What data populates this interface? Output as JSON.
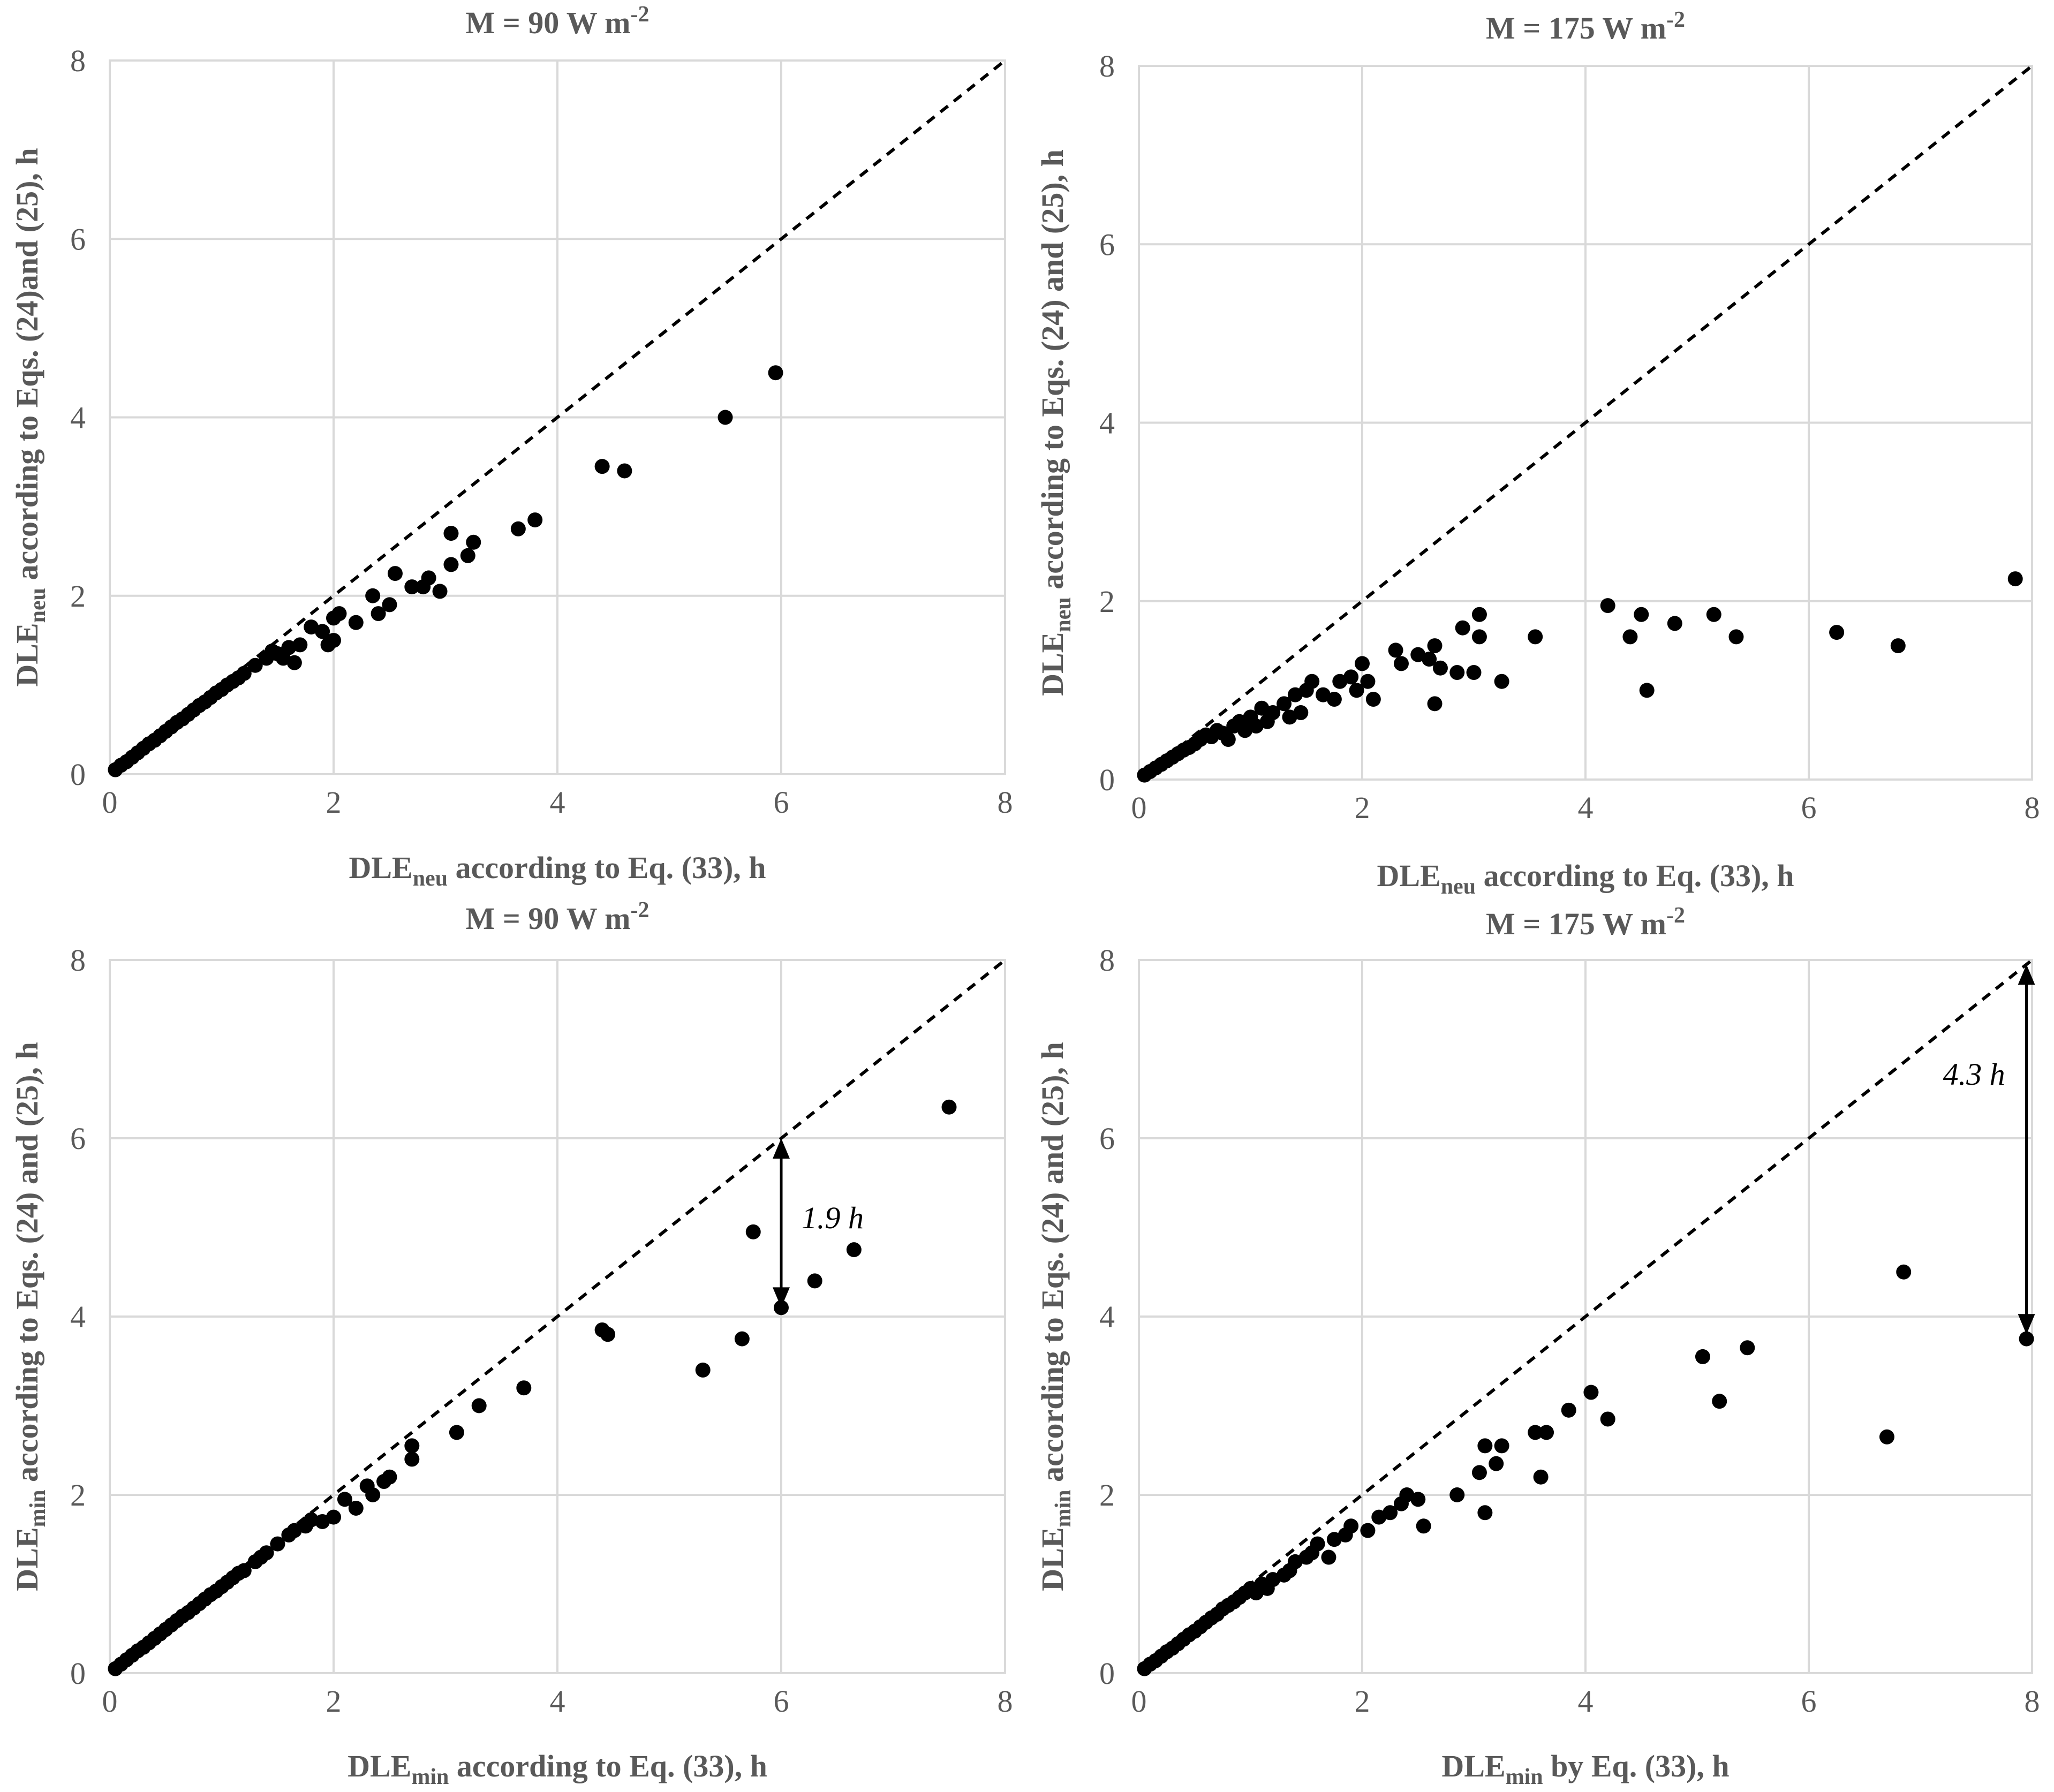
{
  "chart_data": [
    {
      "type": "scatter",
      "title": "M = 90 W m",
      "title_sup": "-2",
      "xlabel": {
        "main": "DLE",
        "sub": "neu",
        "rest": " according to Eq. (33), h"
      },
      "ylabel": {
        "main": "DLE",
        "sub": "neu",
        "rest": " according to  Eqs. (24)and (25), h"
      },
      "xlim": [
        0,
        8
      ],
      "ylim": [
        0,
        8
      ],
      "ticks": [
        "0",
        "2",
        "4",
        "6",
        "8"
      ],
      "reference_line": "y = x",
      "points": [
        [
          0.05,
          0.05
        ],
        [
          0.1,
          0.1
        ],
        [
          0.15,
          0.14
        ],
        [
          0.2,
          0.19
        ],
        [
          0.25,
          0.24
        ],
        [
          0.3,
          0.29
        ],
        [
          0.35,
          0.34
        ],
        [
          0.4,
          0.38
        ],
        [
          0.45,
          0.43
        ],
        [
          0.5,
          0.48
        ],
        [
          0.55,
          0.53
        ],
        [
          0.6,
          0.58
        ],
        [
          0.65,
          0.62
        ],
        [
          0.7,
          0.67
        ],
        [
          0.75,
          0.72
        ],
        [
          0.8,
          0.77
        ],
        [
          0.85,
          0.81
        ],
        [
          0.9,
          0.86
        ],
        [
          0.95,
          0.91
        ],
        [
          1.0,
          0.95
        ],
        [
          1.05,
          1.0
        ],
        [
          1.1,
          1.04
        ],
        [
          1.15,
          1.08
        ],
        [
          1.2,
          1.13
        ],
        [
          1.3,
          1.22
        ],
        [
          1.4,
          1.3
        ],
        [
          1.45,
          1.38
        ],
        [
          1.5,
          1.35
        ],
        [
          1.55,
          1.3
        ],
        [
          1.6,
          1.42
        ],
        [
          1.65,
          1.25
        ],
        [
          1.7,
          1.45
        ],
        [
          1.8,
          1.65
        ],
        [
          1.9,
          1.6
        ],
        [
          1.95,
          1.45
        ],
        [
          2.0,
          1.5
        ],
        [
          2.0,
          1.75
        ],
        [
          2.05,
          1.8
        ],
        [
          2.2,
          1.7
        ],
        [
          2.35,
          2.0
        ],
        [
          2.4,
          1.8
        ],
        [
          2.5,
          1.9
        ],
        [
          2.55,
          2.25
        ],
        [
          2.7,
          2.1
        ],
        [
          2.8,
          2.1
        ],
        [
          2.85,
          2.2
        ],
        [
          2.95,
          2.05
        ],
        [
          3.05,
          2.7
        ],
        [
          3.05,
          2.35
        ],
        [
          3.2,
          2.45
        ],
        [
          3.25,
          2.6
        ],
        [
          3.65,
          2.75
        ],
        [
          3.8,
          2.85
        ],
        [
          4.4,
          3.45
        ],
        [
          4.6,
          3.4
        ],
        [
          5.5,
          4.0
        ],
        [
          5.95,
          4.5
        ]
      ]
    },
    {
      "type": "scatter",
      "title": "M = 175 W m",
      "title_sup": "-2",
      "xlabel": {
        "main": "DLE",
        "sub": "neu",
        "rest": " according to Eq. (33), h"
      },
      "ylabel": {
        "main": "DLE",
        "sub": "neu",
        "rest": " according to Eqs. (24) and (25), h"
      },
      "xlim": [
        0,
        8
      ],
      "ylim": [
        0,
        8
      ],
      "ticks": [
        "0",
        "2",
        "4",
        "6",
        "8"
      ],
      "reference_line": "y = x",
      "points": [
        [
          0.05,
          0.05
        ],
        [
          0.1,
          0.09
        ],
        [
          0.15,
          0.13
        ],
        [
          0.2,
          0.17
        ],
        [
          0.25,
          0.21
        ],
        [
          0.3,
          0.25
        ],
        [
          0.35,
          0.29
        ],
        [
          0.4,
          0.33
        ],
        [
          0.45,
          0.36
        ],
        [
          0.5,
          0.4
        ],
        [
          0.55,
          0.45
        ],
        [
          0.6,
          0.5
        ],
        [
          0.65,
          0.48
        ],
        [
          0.7,
          0.55
        ],
        [
          0.75,
          0.52
        ],
        [
          0.8,
          0.45
        ],
        [
          0.85,
          0.6
        ],
        [
          0.9,
          0.65
        ],
        [
          0.95,
          0.55
        ],
        [
          1.0,
          0.7
        ],
        [
          1.05,
          0.6
        ],
        [
          1.1,
          0.8
        ],
        [
          1.15,
          0.65
        ],
        [
          1.2,
          0.75
        ],
        [
          1.3,
          0.85
        ],
        [
          1.35,
          0.7
        ],
        [
          1.4,
          0.95
        ],
        [
          1.45,
          0.75
        ],
        [
          1.5,
          1.0
        ],
        [
          1.55,
          1.1
        ],
        [
          1.65,
          0.95
        ],
        [
          1.75,
          0.9
        ],
        [
          1.8,
          1.1
        ],
        [
          1.9,
          1.15
        ],
        [
          1.95,
          1.0
        ],
        [
          2.0,
          1.3
        ],
        [
          2.05,
          1.1
        ],
        [
          2.1,
          0.9
        ],
        [
          2.3,
          1.45
        ],
        [
          2.35,
          1.3
        ],
        [
          2.5,
          1.4
        ],
        [
          2.6,
          1.35
        ],
        [
          2.65,
          0.85
        ],
        [
          2.65,
          1.5
        ],
        [
          2.7,
          1.25
        ],
        [
          2.85,
          1.2
        ],
        [
          2.9,
          1.7
        ],
        [
          3.0,
          1.2
        ],
        [
          3.05,
          1.85
        ],
        [
          3.05,
          1.6
        ],
        [
          3.25,
          1.1
        ],
        [
          3.55,
          1.6
        ],
        [
          4.2,
          1.95
        ],
        [
          4.4,
          1.6
        ],
        [
          4.5,
          1.85
        ],
        [
          4.55,
          1.0
        ],
        [
          4.8,
          1.75
        ],
        [
          5.15,
          1.85
        ],
        [
          5.35,
          1.6
        ],
        [
          6.25,
          1.65
        ],
        [
          6.8,
          1.5
        ],
        [
          7.85,
          2.25
        ]
      ]
    },
    {
      "type": "scatter",
      "title": "M = 90 W m",
      "title_sup": "-2",
      "xlabel": {
        "main": "DLE",
        "sub": "min",
        "rest": " according to  Eq. (33), h"
      },
      "ylabel": {
        "main": "DLE",
        "sub": "min",
        "rest": " according to  Eqs. (24) and (25), h"
      },
      "xlim": [
        0,
        8
      ],
      "ylim": [
        0,
        8
      ],
      "ticks": [
        "0",
        "2",
        "4",
        "6",
        "8"
      ],
      "reference_line": "y = x",
      "annotation": {
        "text": "1.9 h",
        "x": 6.0,
        "y_from": 4.1,
        "y_to": 6.0
      },
      "points": [
        [
          0.05,
          0.05
        ],
        [
          0.1,
          0.1
        ],
        [
          0.15,
          0.15
        ],
        [
          0.2,
          0.2
        ],
        [
          0.25,
          0.25
        ],
        [
          0.3,
          0.29
        ],
        [
          0.35,
          0.34
        ],
        [
          0.4,
          0.39
        ],
        [
          0.45,
          0.44
        ],
        [
          0.5,
          0.49
        ],
        [
          0.55,
          0.54
        ],
        [
          0.6,
          0.59
        ],
        [
          0.65,
          0.64
        ],
        [
          0.7,
          0.68
        ],
        [
          0.75,
          0.73
        ],
        [
          0.8,
          0.78
        ],
        [
          0.85,
          0.83
        ],
        [
          0.9,
          0.88
        ],
        [
          0.95,
          0.92
        ],
        [
          1.0,
          0.97
        ],
        [
          1.05,
          1.02
        ],
        [
          1.1,
          1.07
        ],
        [
          1.15,
          1.12
        ],
        [
          1.2,
          1.15
        ],
        [
          1.3,
          1.25
        ],
        [
          1.35,
          1.3
        ],
        [
          1.4,
          1.35
        ],
        [
          1.5,
          1.45
        ],
        [
          1.6,
          1.55
        ],
        [
          1.65,
          1.6
        ],
        [
          1.75,
          1.65
        ],
        [
          1.8,
          1.72
        ],
        [
          1.9,
          1.7
        ],
        [
          2.0,
          1.75
        ],
        [
          2.1,
          1.95
        ],
        [
          2.2,
          1.85
        ],
        [
          2.3,
          2.1
        ],
        [
          2.35,
          2.0
        ],
        [
          2.45,
          2.15
        ],
        [
          2.5,
          2.2
        ],
        [
          2.7,
          2.55
        ],
        [
          2.7,
          2.4
        ],
        [
          3.1,
          2.7
        ],
        [
          3.3,
          3.0
        ],
        [
          3.7,
          3.2
        ],
        [
          4.4,
          3.85
        ],
        [
          4.45,
          3.8
        ],
        [
          5.3,
          3.4
        ],
        [
          5.65,
          3.75
        ],
        [
          5.75,
          4.95
        ],
        [
          6.0,
          4.1
        ],
        [
          6.3,
          4.4
        ],
        [
          6.65,
          4.75
        ],
        [
          7.5,
          6.35
        ]
      ]
    },
    {
      "type": "scatter",
      "title": "M = 175 W m",
      "title_sup": "-2",
      "xlabel": {
        "main": "DLE",
        "sub": "min",
        "rest": " by Eq. (33), h"
      },
      "ylabel": {
        "main": "DLE",
        "sub": "min",
        "rest": " according to Eqs. (24) and (25), h"
      },
      "xlim": [
        0,
        8
      ],
      "ylim": [
        0,
        8
      ],
      "ticks": [
        "0",
        "2",
        "4",
        "6",
        "8"
      ],
      "reference_line": "y = x",
      "annotation": {
        "text": "4.3 h",
        "x": 7.95,
        "y_from": 3.8,
        "y_to": 7.95
      },
      "points": [
        [
          0.05,
          0.05
        ],
        [
          0.1,
          0.1
        ],
        [
          0.15,
          0.14
        ],
        [
          0.2,
          0.19
        ],
        [
          0.25,
          0.24
        ],
        [
          0.3,
          0.28
        ],
        [
          0.35,
          0.33
        ],
        [
          0.4,
          0.38
        ],
        [
          0.45,
          0.43
        ],
        [
          0.5,
          0.47
        ],
        [
          0.55,
          0.52
        ],
        [
          0.6,
          0.57
        ],
        [
          0.65,
          0.62
        ],
        [
          0.7,
          0.66
        ],
        [
          0.75,
          0.72
        ],
        [
          0.8,
          0.76
        ],
        [
          0.85,
          0.8
        ],
        [
          0.9,
          0.85
        ],
        [
          0.95,
          0.9
        ],
        [
          1.0,
          0.95
        ],
        [
          1.05,
          0.9
        ],
        [
          1.1,
          1.0
        ],
        [
          1.15,
          0.95
        ],
        [
          1.2,
          1.05
        ],
        [
          1.3,
          1.1
        ],
        [
          1.35,
          1.15
        ],
        [
          1.4,
          1.25
        ],
        [
          1.5,
          1.3
        ],
        [
          1.55,
          1.35
        ],
        [
          1.6,
          1.45
        ],
        [
          1.7,
          1.3
        ],
        [
          1.75,
          1.5
        ],
        [
          1.85,
          1.55
        ],
        [
          1.9,
          1.65
        ],
        [
          2.05,
          1.6
        ],
        [
          2.15,
          1.75
        ],
        [
          2.25,
          1.8
        ],
        [
          2.35,
          1.9
        ],
        [
          2.4,
          2.0
        ],
        [
          2.5,
          1.95
        ],
        [
          2.55,
          1.65
        ],
        [
          2.85,
          2.0
        ],
        [
          3.05,
          2.25
        ],
        [
          3.1,
          2.55
        ],
        [
          3.1,
          1.8
        ],
        [
          3.2,
          2.35
        ],
        [
          3.25,
          2.55
        ],
        [
          3.55,
          2.7
        ],
        [
          3.6,
          2.2
        ],
        [
          3.65,
          2.7
        ],
        [
          3.85,
          2.95
        ],
        [
          4.05,
          3.15
        ],
        [
          4.2,
          2.85
        ],
        [
          5.05,
          3.55
        ],
        [
          5.2,
          3.05
        ],
        [
          5.45,
          3.65
        ],
        [
          6.7,
          2.65
        ],
        [
          6.85,
          4.5
        ],
        [
          7.95,
          3.75
        ]
      ]
    }
  ]
}
